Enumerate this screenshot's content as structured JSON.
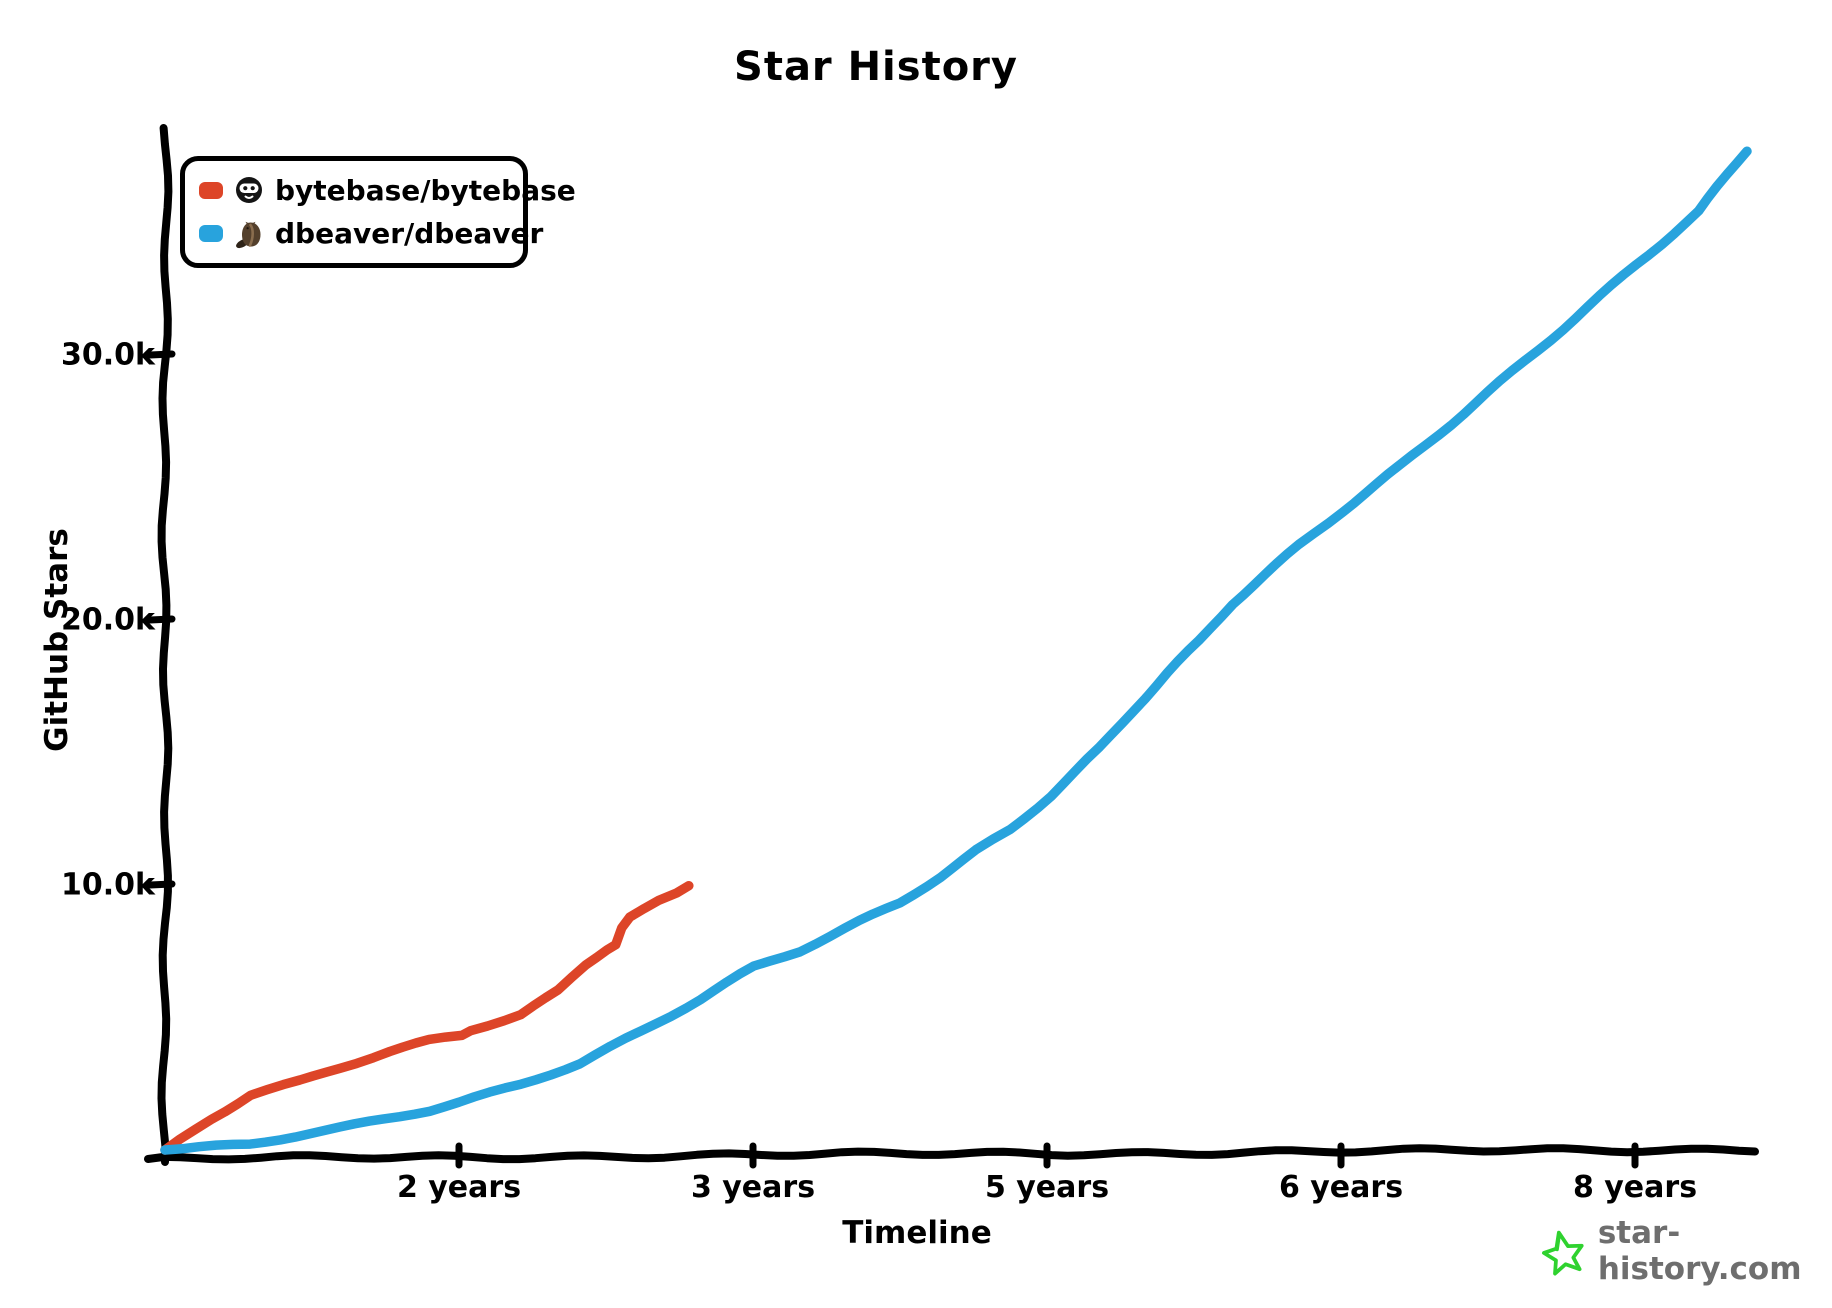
{
  "title": "Star History",
  "legend": {
    "items": [
      {
        "label": "bytebase/bytebase",
        "color": "#dd4528",
        "icon": "bytebase-avatar"
      },
      {
        "label": "dbeaver/dbeaver",
        "color": "#28a3dd",
        "icon": "dbeaver-avatar"
      }
    ]
  },
  "watermark": {
    "text": "star-history.com",
    "star_color": "#2fd22f",
    "text_color": "#6e6e6e"
  },
  "colors": {
    "axis": "#000000",
    "background": "#ffffff",
    "series_red": "#dd4528",
    "series_blue": "#28a3dd"
  },
  "chart_data": {
    "type": "line",
    "title": "Star History",
    "xlabel": "Timeline",
    "ylabel": "GitHub Stars",
    "grid": false,
    "legend_position": "top-left",
    "x_ticks": [
      {
        "label": "2 years",
        "years": 2
      },
      {
        "label": "3 years",
        "years": 3
      },
      {
        "label": "5 years",
        "years": 5
      },
      {
        "label": "6 years",
        "years": 6
      },
      {
        "label": "8 years",
        "years": 8
      }
    ],
    "y_ticks": [
      {
        "label": "10.0k",
        "value_k": 10
      },
      {
        "label": "20.0k",
        "value_k": 20
      },
      {
        "label": "30.0k",
        "value_k": 30
      }
    ],
    "ylim_k": [
      0,
      38.5
    ],
    "xlim_years": [
      0,
      8.8
    ],
    "series": [
      {
        "name": "bytebase/bytebase",
        "color": "#dd4528",
        "points_years_stars_k": [
          [
            0,
            0
          ],
          [
            0.31,
            1.2
          ],
          [
            0.58,
            2.1
          ],
          [
            0.92,
            2.6
          ],
          [
            1.19,
            3.1
          ],
          [
            1.53,
            3.7
          ],
          [
            1.8,
            4.1
          ],
          [
            2.01,
            4.3
          ],
          [
            2.04,
            4.5
          ],
          [
            2.21,
            5.1
          ],
          [
            2.34,
            6.0
          ],
          [
            2.43,
            7.0
          ],
          [
            2.5,
            7.6
          ],
          [
            2.53,
            7.8
          ],
          [
            2.55,
            8.4
          ],
          [
            2.58,
            8.8
          ],
          [
            2.63,
            9.1
          ],
          [
            2.68,
            9.4
          ],
          [
            2.74,
            9.7
          ],
          [
            2.78,
            10.0
          ]
        ]
      },
      {
        "name": "dbeaver/dbeaver",
        "color": "#28a3dd",
        "points_years_stars_k": [
          [
            0,
            0
          ],
          [
            0.58,
            0.2
          ],
          [
            1.19,
            0.8
          ],
          [
            1.8,
            1.5
          ],
          [
            2.0,
            1.8
          ],
          [
            2.21,
            2.5
          ],
          [
            2.41,
            3.3
          ],
          [
            2.62,
            4.5
          ],
          [
            2.82,
            5.7
          ],
          [
            3.01,
            6.9
          ],
          [
            3.32,
            7.5
          ],
          [
            3.73,
            8.6
          ],
          [
            4.0,
            9.3
          ],
          [
            4.27,
            10.3
          ],
          [
            4.52,
            11.3
          ],
          [
            4.75,
            12.1
          ],
          [
            5.01,
            13.4
          ],
          [
            5.18,
            15.2
          ],
          [
            5.29,
            16.6
          ],
          [
            5.41,
            18.0
          ],
          [
            5.52,
            19.2
          ],
          [
            5.63,
            20.6
          ],
          [
            5.86,
            22.8
          ],
          [
            6.01,
            24.1
          ],
          [
            6.4,
            25.8
          ],
          [
            6.74,
            27.4
          ],
          [
            7.08,
            29.0
          ],
          [
            7.42,
            30.6
          ],
          [
            7.76,
            32.2
          ],
          [
            8.01,
            33.4
          ],
          [
            8.44,
            35.4
          ],
          [
            8.76,
            37.7
          ]
        ]
      }
    ]
  }
}
